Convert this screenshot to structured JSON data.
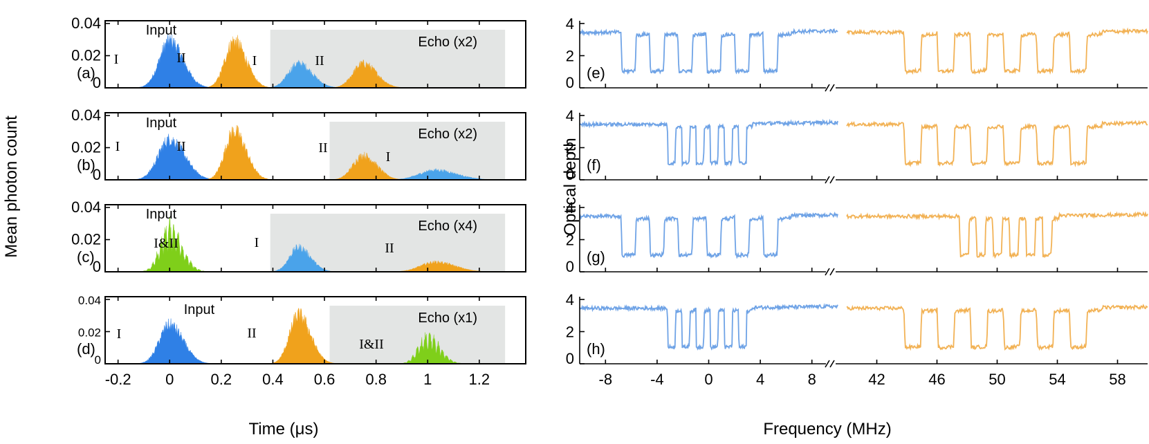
{
  "chart_data": [
    {
      "type": "area",
      "layout": "four stacked panels sharing a time axis",
      "xlabel": "Time (μs)",
      "ylabel": "Mean photon count",
      "xlim": [
        -0.25,
        1.38
      ],
      "xticks": [
        "-0.2",
        "0",
        "0.2",
        "0.4",
        "0.6",
        "0.8",
        "1",
        "1.2"
      ],
      "colors": {
        "I_input": "#2f80e6",
        "II": "#f0a21c",
        "I_echo": "#4aa3ea",
        "combined": "#7fcf1a"
      },
      "panels": [
        {
          "label": "(a)",
          "ylim": [
            0,
            0.04
          ],
          "yticks": [
            "0",
            "0.02",
            "0.04"
          ],
          "echo_region": {
            "x_start": 0.39,
            "x_end": 1.3,
            "label": "Echo (x2)"
          },
          "annotations": {
            "input": "Input",
            "labels": [
              "I",
              "II",
              "I",
              "II"
            ]
          },
          "series": [
            {
              "name": "Input I",
              "color_key": "I_input",
              "center": 0.0,
              "width": 0.045,
              "peak": 0.029
            },
            {
              "name": "Input II",
              "color_key": "II",
              "center": 0.25,
              "width": 0.04,
              "peak": 0.029
            },
            {
              "name": "Echo I",
              "color_key": "I_echo",
              "center": 0.5,
              "width": 0.045,
              "peak": 0.015
            },
            {
              "name": "Echo II",
              "color_key": "II",
              "center": 0.75,
              "width": 0.045,
              "peak": 0.015
            }
          ]
        },
        {
          "label": "(b)",
          "ylim": [
            0,
            0.04
          ],
          "yticks": [
            "0",
            "0.02",
            "0.04"
          ],
          "echo_region": {
            "x_start": 0.62,
            "x_end": 1.3,
            "label": "Echo (x2)"
          },
          "annotations": {
            "input": "Input",
            "labels": [
              "I",
              "II",
              "II",
              "I"
            ]
          },
          "series": [
            {
              "name": "Input I",
              "color_key": "I_input",
              "center": 0.0,
              "width": 0.05,
              "peak": 0.025
            },
            {
              "name": "Input II",
              "color_key": "II",
              "center": 0.25,
              "width": 0.04,
              "peak": 0.03
            },
            {
              "name": "Echo II",
              "color_key": "II",
              "center": 0.75,
              "width": 0.045,
              "peak": 0.015
            },
            {
              "name": "Echo I",
              "color_key": "I_echo",
              "center": 1.03,
              "width": 0.07,
              "peak": 0.006
            }
          ]
        },
        {
          "label": "(c)",
          "ylim": [
            0,
            0.04
          ],
          "yticks": [
            "0",
            "0.02",
            "0.04"
          ],
          "echo_region": {
            "x_start": 0.39,
            "x_end": 1.3,
            "label": "Echo (x4)"
          },
          "annotations": {
            "input": "Input",
            "labels": [
              "I&II",
              "I",
              "II"
            ]
          },
          "series": [
            {
              "name": "Input I&II",
              "color_key": "combined",
              "center": 0.0,
              "width": 0.04,
              "peak": 0.03,
              "fringes": true
            },
            {
              "name": "Echo I",
              "color_key": "I_echo",
              "center": 0.5,
              "width": 0.04,
              "peak": 0.015
            },
            {
              "name": "Echo II",
              "color_key": "II",
              "center": 1.03,
              "width": 0.065,
              "peak": 0.006
            }
          ]
        },
        {
          "label": "(d)",
          "ylim": [
            0,
            0.04
          ],
          "yticks": [
            "0",
            "0.02",
            "0.04"
          ],
          "echo_region": {
            "x_start": 0.62,
            "x_end": 1.3,
            "label": "Echo (x1)"
          },
          "annotations": {
            "input": "Input",
            "labels": [
              "I",
              "II",
              "I&II"
            ]
          },
          "series": [
            {
              "name": "Input I",
              "color_key": "I_input",
              "center": 0.0,
              "width": 0.045,
              "peak": 0.024
            },
            {
              "name": "Input II",
              "color_key": "II",
              "center": 0.5,
              "width": 0.04,
              "peak": 0.03
            },
            {
              "name": "Echo I&II",
              "color_key": "combined",
              "center": 1.0,
              "width": 0.04,
              "peak": 0.018,
              "fringes": true
            }
          ]
        }
      ]
    },
    {
      "type": "line",
      "layout": "four stacked panels with a broken frequency axis",
      "xlabel": "Frequency (MHz)",
      "ylabel": "Optical depth",
      "ylim": [
        0,
        4
      ],
      "yticks": [
        "0",
        "2",
        "4"
      ],
      "x_segments": [
        {
          "range": [
            -10,
            10
          ],
          "ticks": [
            "-8",
            "-4",
            "0",
            "4",
            "8"
          ],
          "color": "#6fa3e6"
        },
        {
          "range": [
            40,
            60
          ],
          "ticks": [
            "42",
            "46",
            "50",
            "54",
            "58"
          ],
          "color": "#f2b255"
        }
      ],
      "axis_break": "//",
      "baseline_od": 3.4,
      "trough_od": 1.0,
      "panels": [
        {
          "label": "(e)",
          "blue_combs": {
            "start": -6.8,
            "period": 2.2,
            "count": 6,
            "fill": 0.5
          },
          "orange_combs": {
            "start": 43.8,
            "period": 2.2,
            "count": 6,
            "fill": 0.5
          }
        },
        {
          "label": "(f)",
          "blue_combs": {
            "start": -3.2,
            "period": 1.1,
            "count": 6,
            "fill": 0.55
          },
          "orange_combs": {
            "start": 43.8,
            "period": 2.2,
            "count": 6,
            "fill": 0.5
          }
        },
        {
          "label": "(g)",
          "blue_combs": {
            "start": -6.8,
            "period": 2.2,
            "count": 6,
            "fill": 0.5
          },
          "orange_combs": {
            "start": 47.5,
            "period": 1.1,
            "count": 6,
            "fill": 0.55
          }
        },
        {
          "label": "(h)",
          "blue_combs": {
            "start": -3.2,
            "period": 1.1,
            "count": 6,
            "fill": 0.55
          },
          "orange_combs": {
            "start": 43.8,
            "period": 2.2,
            "count": 6,
            "fill": 0.5
          }
        }
      ]
    }
  ]
}
